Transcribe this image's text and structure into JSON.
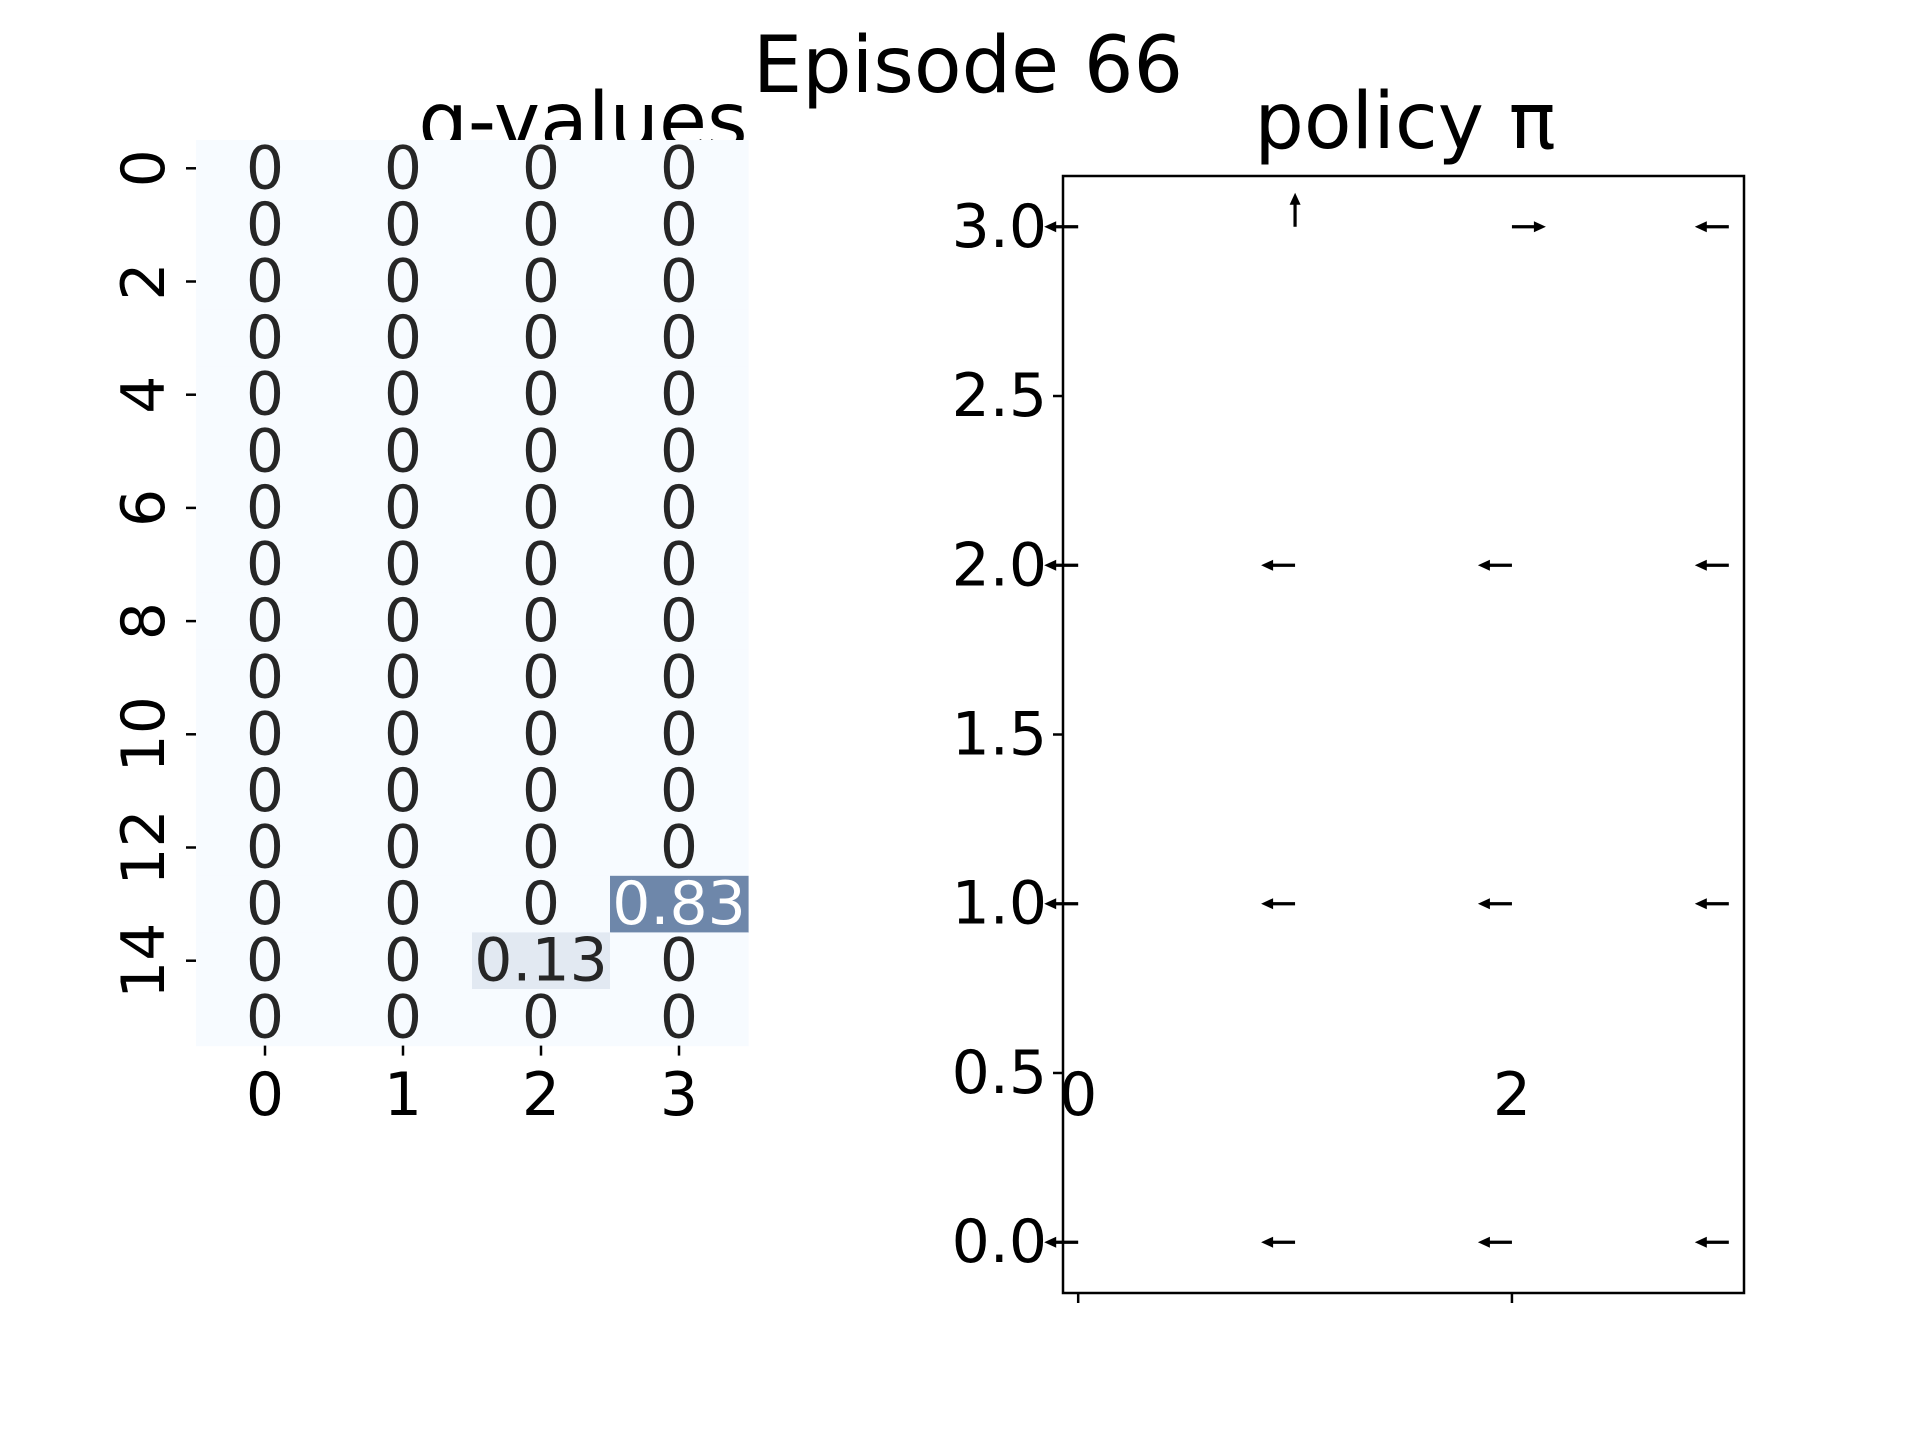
{
  "suptitle": "Episode 66",
  "colors": {
    "cmap_low": "#f7fbff",
    "cmap_high": "#08306b",
    "text_dark": "#262626",
    "text_light": "#ffffff",
    "arrow": "#000000"
  },
  "chart_data": [
    {
      "type": "heatmap",
      "title": "q-values",
      "xlabel": "",
      "ylabel": "",
      "x_ticks": [
        "0",
        "1",
        "2",
        "3"
      ],
      "y_ticks": [
        "0",
        "2",
        "4",
        "6",
        "8",
        "10",
        "12",
        "14"
      ],
      "y_tick_rows": [
        0,
        2,
        4,
        6,
        8,
        10,
        12,
        14
      ],
      "vmin": 0,
      "vmax": 1.45,
      "values": [
        [
          0,
          0,
          0,
          0
        ],
        [
          0,
          0,
          0,
          0
        ],
        [
          0,
          0,
          0,
          0
        ],
        [
          0,
          0,
          0,
          0
        ],
        [
          0,
          0,
          0,
          0
        ],
        [
          0,
          0,
          0,
          0
        ],
        [
          0,
          0,
          0,
          0
        ],
        [
          0,
          0,
          0,
          0
        ],
        [
          0,
          0,
          0,
          0
        ],
        [
          0,
          0,
          0,
          0
        ],
        [
          0,
          0,
          0,
          0
        ],
        [
          0,
          0,
          0,
          0
        ],
        [
          0,
          0,
          0,
          0
        ],
        [
          0,
          0,
          0,
          0.83
        ],
        [
          0,
          0,
          0.13,
          0
        ],
        [
          0,
          0,
          0,
          0
        ]
      ],
      "labels": [
        [
          "0",
          "0",
          "0",
          "0"
        ],
        [
          "0",
          "0",
          "0",
          "0"
        ],
        [
          "0",
          "0",
          "0",
          "0"
        ],
        [
          "0",
          "0",
          "0",
          "0"
        ],
        [
          "0",
          "0",
          "0",
          "0"
        ],
        [
          "0",
          "0",
          "0",
          "0"
        ],
        [
          "0",
          "0",
          "0",
          "0"
        ],
        [
          "0",
          "0",
          "0",
          "0"
        ],
        [
          "0",
          "0",
          "0",
          "0"
        ],
        [
          "0",
          "0",
          "0",
          "0"
        ],
        [
          "0",
          "0",
          "0",
          "0"
        ],
        [
          "0",
          "0",
          "0",
          "0"
        ],
        [
          "0",
          "0",
          "0",
          "0"
        ],
        [
          "0",
          "0",
          "0",
          "0.83"
        ],
        [
          "0",
          "0",
          "0.13",
          "0"
        ],
        [
          "0",
          "0",
          "0",
          "0"
        ]
      ]
    },
    {
      "type": "quiver",
      "title": "policy π",
      "xlabel": "",
      "ylabel": "",
      "xlim": [
        -0.07,
        3.07
      ],
      "ylim": [
        -0.15,
        3.15
      ],
      "x_ticks": [
        0,
        2
      ],
      "y_ticks": [
        0.0,
        0.5,
        1.0,
        1.5,
        2.0,
        2.5,
        3.0
      ],
      "y_tick_labels": [
        "0.0",
        "0.5",
        "1.0",
        "1.5",
        "2.0",
        "2.5",
        "3.0"
      ],
      "arrows": [
        {
          "x": 0,
          "y": 3,
          "dir": "left"
        },
        {
          "x": 1,
          "y": 3,
          "dir": "up"
        },
        {
          "x": 2,
          "y": 3,
          "dir": "right"
        },
        {
          "x": 3,
          "y": 3,
          "dir": "left"
        },
        {
          "x": 0,
          "y": 2,
          "dir": "left"
        },
        {
          "x": 1,
          "y": 2,
          "dir": "left"
        },
        {
          "x": 2,
          "y": 2,
          "dir": "left"
        },
        {
          "x": 3,
          "y": 2,
          "dir": "left"
        },
        {
          "x": 0,
          "y": 1,
          "dir": "left"
        },
        {
          "x": 1,
          "y": 1,
          "dir": "left"
        },
        {
          "x": 2,
          "y": 1,
          "dir": "left"
        },
        {
          "x": 3,
          "y": 1,
          "dir": "left"
        },
        {
          "x": 0,
          "y": 0,
          "dir": "left"
        },
        {
          "x": 1,
          "y": 0,
          "dir": "left"
        },
        {
          "x": 2,
          "y": 0,
          "dir": "left"
        },
        {
          "x": 3,
          "y": 0,
          "dir": "left"
        }
      ]
    }
  ]
}
